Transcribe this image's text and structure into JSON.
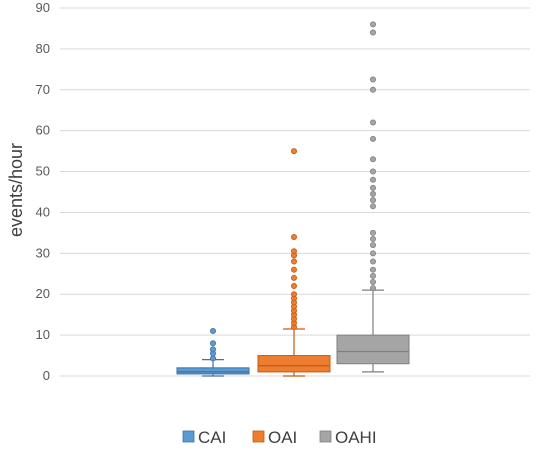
{
  "chart_data": {
    "type": "box",
    "title": "",
    "xlabel": "",
    "ylabel": "events/hour",
    "ylim": [
      0,
      90
    ],
    "yticks": [
      "0",
      "10",
      "20",
      "30",
      "40",
      "50",
      "60",
      "70",
      "80",
      "90"
    ],
    "grid": true,
    "legend_position": "bottom",
    "series": [
      {
        "name": "CAI",
        "color": "#5b9bd5",
        "stroke": "#41719c",
        "min": 0,
        "q1": 0.5,
        "median": 1.0,
        "q3": 2.0,
        "max": 4.0,
        "outliers": [
          4.3,
          5.5,
          6.5,
          8.0,
          11.0
        ]
      },
      {
        "name": "OAI",
        "color": "#ed7d31",
        "stroke": "#c55a11",
        "min": 0,
        "q1": 1.0,
        "median": 2.5,
        "q3": 5.0,
        "max": 11.5,
        "outliers": [
          12,
          13,
          14,
          15,
          16,
          17,
          18,
          19,
          20,
          22,
          24,
          26,
          28,
          29.5,
          30.5,
          34,
          55
        ]
      },
      {
        "name": "OAHI",
        "color": "#a5a5a5",
        "stroke": "#7f7f7f",
        "min": 1.0,
        "q1": 3.0,
        "median": 6.0,
        "q3": 10.0,
        "max": 21.0,
        "outliers": [
          21.5,
          23,
          24.5,
          26,
          28,
          30,
          32,
          33.5,
          35,
          41.5,
          43,
          44.5,
          46,
          48,
          50,
          53,
          58,
          62,
          70,
          72.5,
          84,
          86
        ]
      }
    ]
  }
}
